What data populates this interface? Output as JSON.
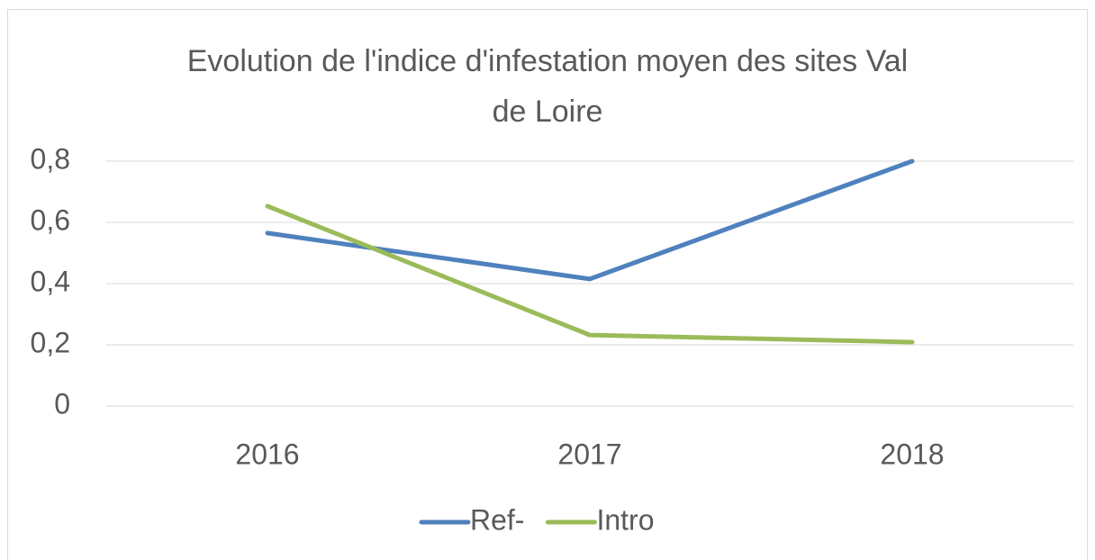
{
  "chart_data": {
    "type": "line",
    "title": "Evolution de l'indice d'infestation moyen des sites Val de Loire",
    "categories": [
      "2016",
      "2017",
      "2018"
    ],
    "series": [
      {
        "name": "Ref-",
        "color": "#4f81bd",
        "values": [
          0.565,
          0.415,
          0.8
        ]
      },
      {
        "name": "Intro",
        "color": "#9bbb59",
        "values": [
          0.653,
          0.232,
          0.209
        ]
      }
    ],
    "ylim": [
      0,
      0.8
    ],
    "yticks": [
      0,
      {
        "value": 0.2,
        "label": "0,2"
      },
      {
        "value": 0.4,
        "label": "0,4"
      },
      {
        "value": 0.6,
        "label": "0,6"
      },
      {
        "value": 0.8,
        "label": "0,8"
      }
    ],
    "grid": true,
    "legend": "bottom"
  }
}
